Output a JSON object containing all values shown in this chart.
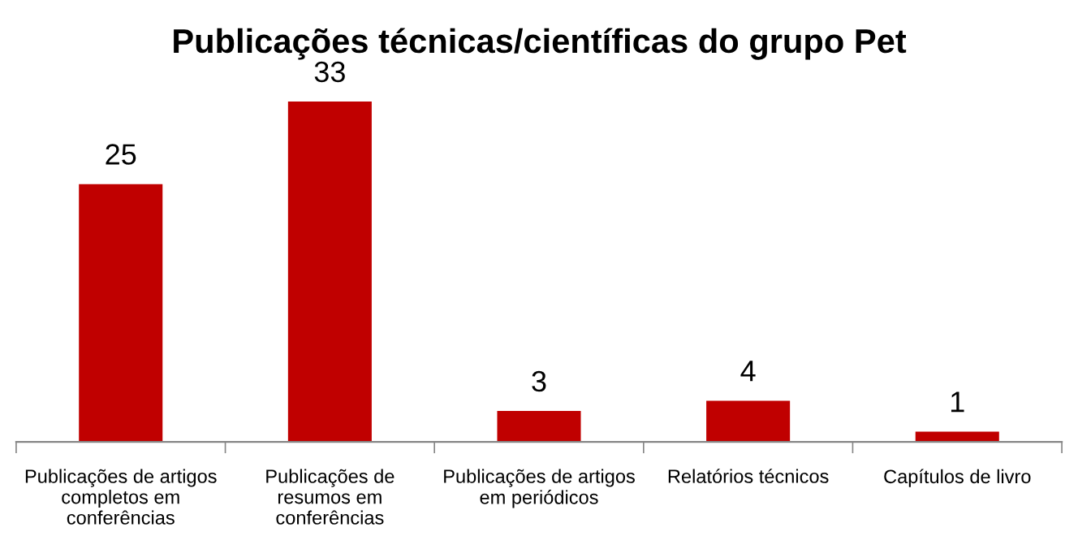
{
  "chart_data": {
    "type": "bar",
    "title": "Publicações técnicas/científicas do grupo Pet",
    "categories": [
      "Publicações de artigos\ncompletos em\nconferências",
      "Publicações de\nresumos em\nconferências",
      "Publicações de artigos\nem periódicos",
      "Relatórios técnicos",
      "Capítulos de livro"
    ],
    "values": [
      25,
      33,
      3,
      4,
      1
    ],
    "color": "#c00000",
    "data_labels": true,
    "grid": false,
    "legend": false
  }
}
